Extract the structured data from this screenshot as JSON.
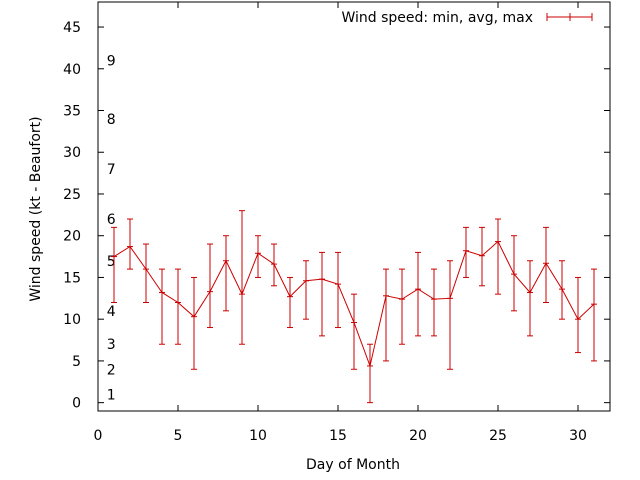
{
  "chart_data": {
    "type": "line",
    "title": "",
    "xlabel": "Day of Month",
    "ylabel": "Wind speed (kt - Beaufort)",
    "xlim": [
      0,
      32
    ],
    "ylim": [
      -1,
      48
    ],
    "xticks": [
      0,
      5,
      10,
      15,
      20,
      25,
      30
    ],
    "yticks": [
      0,
      5,
      10,
      15,
      20,
      25,
      30,
      35,
      40,
      45
    ],
    "grid": false,
    "legend": {
      "placement": "top-right",
      "label": "Wind speed: min, avg, max"
    },
    "beaufort_labels": [
      {
        "label": "1",
        "y": 1
      },
      {
        "label": "2",
        "y": 4
      },
      {
        "label": "3",
        "y": 7
      },
      {
        "label": "4",
        "y": 11
      },
      {
        "label": "5",
        "y": 17
      },
      {
        "label": "6",
        "y": 22
      },
      {
        "label": "7",
        "y": 28
      },
      {
        "label": "8",
        "y": 34
      },
      {
        "label": "9",
        "y": 41
      }
    ],
    "series": [
      {
        "color": "#cc0000",
        "x": [
          1,
          2,
          3,
          4,
          5,
          6,
          7,
          8,
          9,
          10,
          11,
          12,
          13,
          14,
          15,
          16,
          17,
          18,
          19,
          20,
          21,
          22,
          23,
          24,
          25,
          26,
          27,
          28,
          29,
          30,
          31
        ],
        "avg": [
          17.5,
          18.7,
          16,
          13.2,
          12,
          10.3,
          13.3,
          17,
          13,
          17.9,
          16.6,
          12.7,
          14.6,
          14.8,
          14.2,
          9.6,
          4.4,
          12.8,
          12.4,
          13.6,
          12.4,
          12.5,
          18.2,
          17.6,
          19.3,
          15.4,
          13.2,
          16.7,
          13.6,
          10,
          11.8
        ],
        "min": [
          12,
          16,
          12,
          7,
          7,
          4,
          9,
          11,
          7,
          15,
          14,
          9,
          10,
          8,
          9,
          4,
          0,
          5,
          7,
          8,
          8,
          4,
          15,
          14,
          13,
          11,
          8,
          12,
          10,
          6,
          5
        ],
        "max": [
          21,
          22,
          19,
          16,
          16,
          15,
          19,
          20,
          23,
          20,
          19,
          15,
          17,
          18,
          18,
          13,
          7,
          16,
          16,
          18,
          16,
          17,
          21,
          21,
          22,
          20,
          17,
          21,
          17,
          15,
          16
        ]
      }
    ]
  }
}
